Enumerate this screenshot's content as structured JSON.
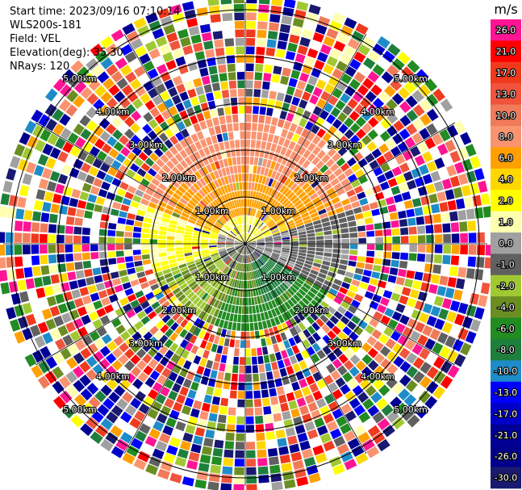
{
  "header": {
    "start_time": "Start time: 2023/09/16 07:10:14",
    "instrument": "WLS200s-181",
    "field": "Field: VEL",
    "elevation": "Elevation(deg): 35.30",
    "nrays": "NRays: 120"
  },
  "chart_data": {
    "type": "heatmap",
    "projection": "polar-ppi",
    "field": "VEL",
    "units": "m/s",
    "n_rays": 120,
    "elevation_deg": 35.3,
    "range_rings_km": [
      "1.00km",
      "2.00km",
      "3.00km",
      "4.00km",
      "5.00km"
    ],
    "radial_spokes_deg": [
      0,
      30,
      60,
      90,
      120,
      150,
      180,
      210,
      240,
      270,
      300,
      330
    ],
    "colorbar": {
      "label": "m/s",
      "ticks": [
        "26.0",
        "21.0",
        "17.0",
        "13.0",
        "10.0",
        "8.0",
        "6.0",
        "4.0",
        "2.0",
        "1.0",
        "0.0",
        "-1.0",
        "-2.0",
        "-4.0",
        "-6.0",
        "-8.0",
        "-10.0",
        "-13.0",
        "-17.0",
        "-21.0",
        "-26.0",
        "-30.0"
      ],
      "colors": [
        "#ff1493",
        "#ff0000",
        "#f03a1e",
        "#f0543c",
        "#f07a5a",
        "#fa9470",
        "#ffa000",
        "#ffd700",
        "#ffff00",
        "#ffffb0",
        "#a0a0a0",
        "#606060",
        "#a0c832",
        "#6b8e23",
        "#228b22",
        "#1e7f3c",
        "#1e8cc8",
        "#0000ff",
        "#0000c8",
        "#000096",
        "#00008b",
        "#191970"
      ]
    },
    "regions": [
      {
        "sector": "north",
        "range": "0-2.6km",
        "value": "2.0 to 8.0"
      },
      {
        "sector": "north-center",
        "range": "1-2.5km",
        "value": "6.0 to 10.0"
      },
      {
        "sector": "east",
        "range": "0-1.5km",
        "value": "-1.0 to 0.0"
      },
      {
        "sector": "south",
        "range": "0-2.8km",
        "value": "-2.0 to -6.0"
      },
      {
        "sector": "southeast",
        "range": "0.5-1.5km",
        "value": "-8.0 to -10.0"
      },
      {
        "sector": "all",
        "range": ">3km",
        "value": "noise"
      }
    ]
  }
}
